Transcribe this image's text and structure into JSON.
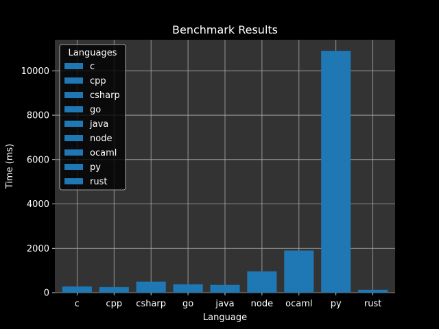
{
  "chart_data": {
    "type": "bar",
    "title": "Benchmark Results",
    "xlabel": "Language",
    "ylabel": "Time (ms)",
    "categories": [
      "c",
      "cpp",
      "csharp",
      "go",
      "java",
      "node",
      "ocaml",
      "py",
      "rust"
    ],
    "values": [
      280,
      250,
      500,
      380,
      350,
      960,
      1900,
      10900,
      130
    ],
    "ylim": [
      0,
      11400
    ],
    "yticks": [
      0,
      2000,
      4000,
      6000,
      8000,
      10000
    ],
    "ytick_labels": [
      "0",
      "2000",
      "4000",
      "6000",
      "8000",
      "10000"
    ],
    "grid": true,
    "legend": {
      "title": "Languages",
      "placement": "top-left",
      "entries": [
        "c",
        "cpp",
        "csharp",
        "go",
        "java",
        "node",
        "ocaml",
        "py",
        "rust"
      ]
    },
    "colors": {
      "bar": "#1f77b4",
      "background": "#000000",
      "plot_area": "#333333",
      "grid": "#b0b0b0",
      "text": "#ffffff"
    }
  }
}
